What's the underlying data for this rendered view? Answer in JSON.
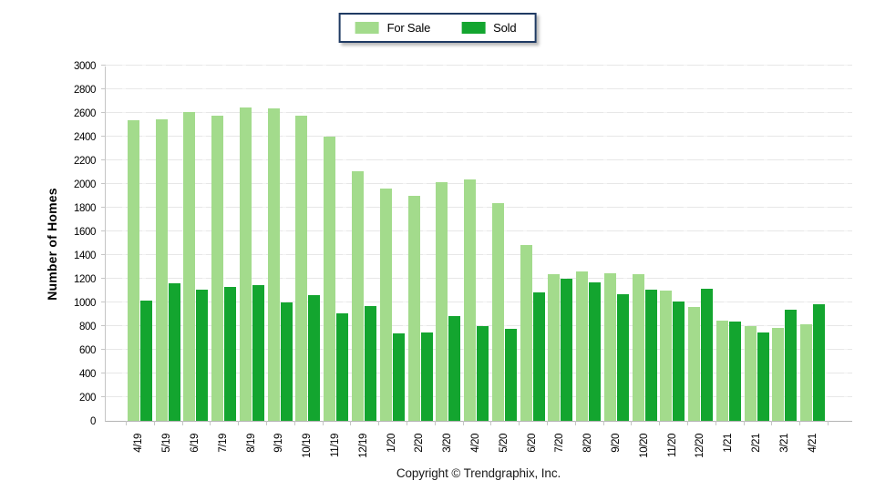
{
  "legend": {
    "items": [
      {
        "label": "For Sale",
        "color": "#a3db8c"
      },
      {
        "label": "Sold",
        "color": "#13a52f"
      }
    ],
    "border_color": "#1f3a63"
  },
  "footer": {
    "copyright": "Copyright © Trendgraphix, Inc."
  },
  "colors": {
    "for_sale": "#a3db8c",
    "sold": "#13a52f",
    "gridline": "#e7e7e7",
    "axis": "#c6c6c6",
    "text": "#000000"
  },
  "chart_data": {
    "type": "bar",
    "title": "",
    "xlabel": "",
    "ylabel": "Number of Homes",
    "ylim": [
      0,
      3000
    ],
    "ytick_step": 200,
    "grid": true,
    "legend_position": "top-center",
    "categories": [
      "4/19",
      "5/19",
      "6/19",
      "7/19",
      "8/19",
      "9/19",
      "10/19",
      "11/19",
      "12/19",
      "1/20",
      "2/20",
      "3/20",
      "4/20",
      "5/20",
      "6/20",
      "7/20",
      "8/20",
      "9/20",
      "10/20",
      "11/20",
      "12/20",
      "1/21",
      "2/21",
      "3/21",
      "4/21"
    ],
    "series": [
      {
        "name": "For Sale",
        "color": "#a3db8c",
        "values": [
          2540,
          2550,
          2610,
          2580,
          2650,
          2640,
          2580,
          2400,
          2110,
          1960,
          1900,
          2020,
          2040,
          1840,
          1490,
          1240,
          1260,
          1250,
          1240,
          1100,
          960,
          850,
          800,
          790,
          820
        ]
      },
      {
        "name": "Sold",
        "color": "#13a52f",
        "values": [
          1020,
          1160,
          1110,
          1130,
          1150,
          1000,
          1060,
          910,
          970,
          740,
          750,
          890,
          800,
          780,
          1090,
          1200,
          1170,
          1070,
          1110,
          1010,
          1120,
          840,
          750,
          940,
          990
        ]
      }
    ]
  }
}
